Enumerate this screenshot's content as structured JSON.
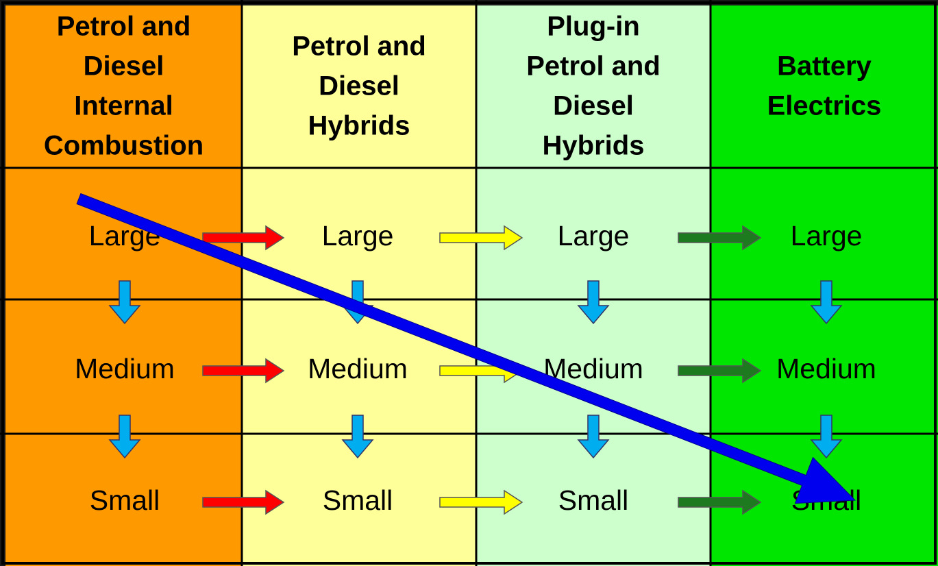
{
  "columns": [
    {
      "header": [
        "Petrol and",
        "Diesel",
        "Internal",
        "Combustion"
      ],
      "cells": [
        "Large",
        "Medium",
        "Small"
      ]
    },
    {
      "header": [
        "Petrol and",
        "Diesel",
        "Hybrids"
      ],
      "cells": [
        "Large",
        "Medium",
        "Small"
      ]
    },
    {
      "header": [
        "Plug-in",
        "Petrol and",
        "Diesel",
        "Hybrids"
      ],
      "cells": [
        "Large",
        "Medium",
        "Small"
      ]
    },
    {
      "header": [
        "Battery",
        "Electrics"
      ],
      "cells": [
        "Large",
        "Medium",
        "Small"
      ]
    }
  ]
}
